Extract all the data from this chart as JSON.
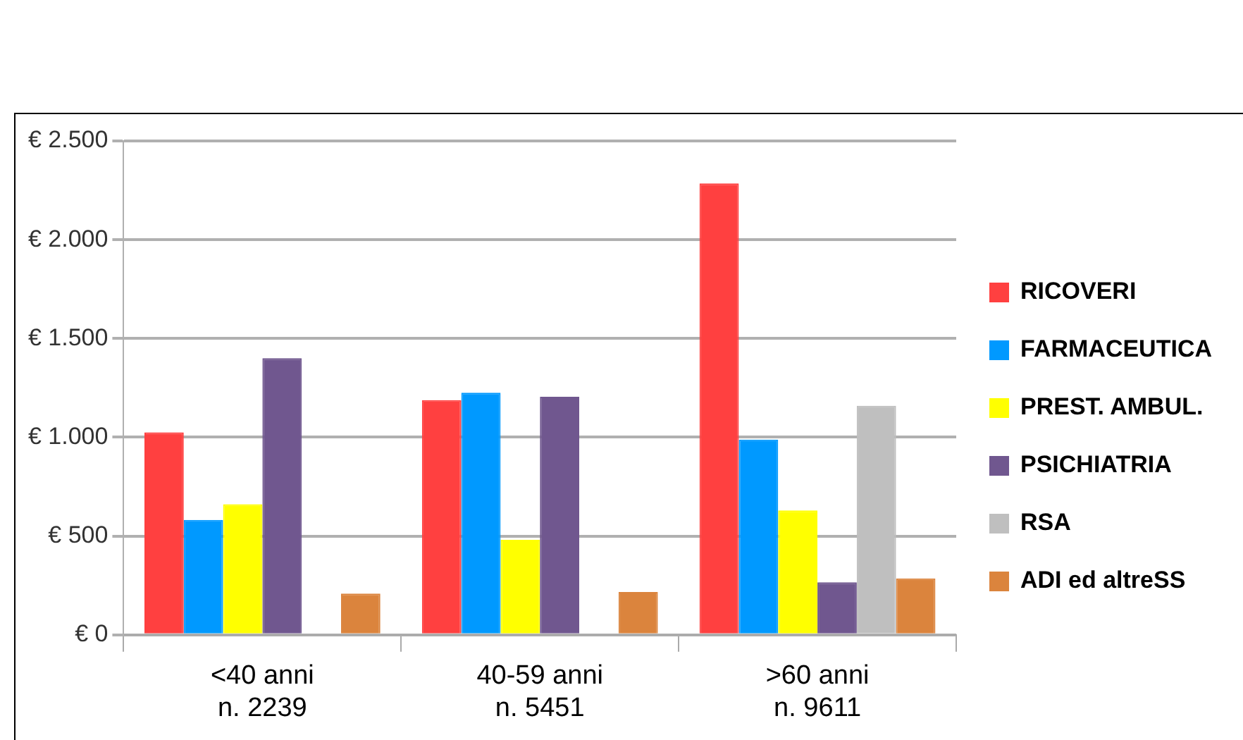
{
  "chart_data": {
    "type": "bar",
    "categories": [
      "<40 anni\nn. 2239",
      "40-59 anni\nn. 5451",
      ">60 anni\nn. 9611"
    ],
    "series": [
      {
        "name": "RICOVERI",
        "color": "#ff4040",
        "values": [
          1025,
          1188,
          2285
        ]
      },
      {
        "name": "FARMACEUTICA",
        "color": "#0099ff",
        "values": [
          582,
          1226,
          988
        ]
      },
      {
        "name": "PREST. AMBUL.",
        "color": "#ffff00",
        "values": [
          661,
          481,
          630
        ]
      },
      {
        "name": "PSICHIATRIA",
        "color": "#70578f",
        "values": [
          1400,
          1205,
          266
        ]
      },
      {
        "name": "RSA",
        "color": "#bfbfbf",
        "values": [
          null,
          0,
          1160
        ]
      },
      {
        "name": "ADI ed altreSS",
        "color": "#db843d",
        "values": [
          209,
          217,
          286
        ]
      }
    ],
    "ylim": [
      0,
      2500
    ],
    "yticks": [
      {
        "value": 0,
        "label": "€ 0"
      },
      {
        "value": 500,
        "label": "€ 500"
      },
      {
        "value": 1000,
        "label": "€ 1.000"
      },
      {
        "value": 1500,
        "label": "€ 1.500"
      },
      {
        "value": 2000,
        "label": "€ 2.000"
      },
      {
        "value": 2500,
        "label": "€ 2.500"
      }
    ],
    "grid": "y",
    "legend": "right"
  }
}
